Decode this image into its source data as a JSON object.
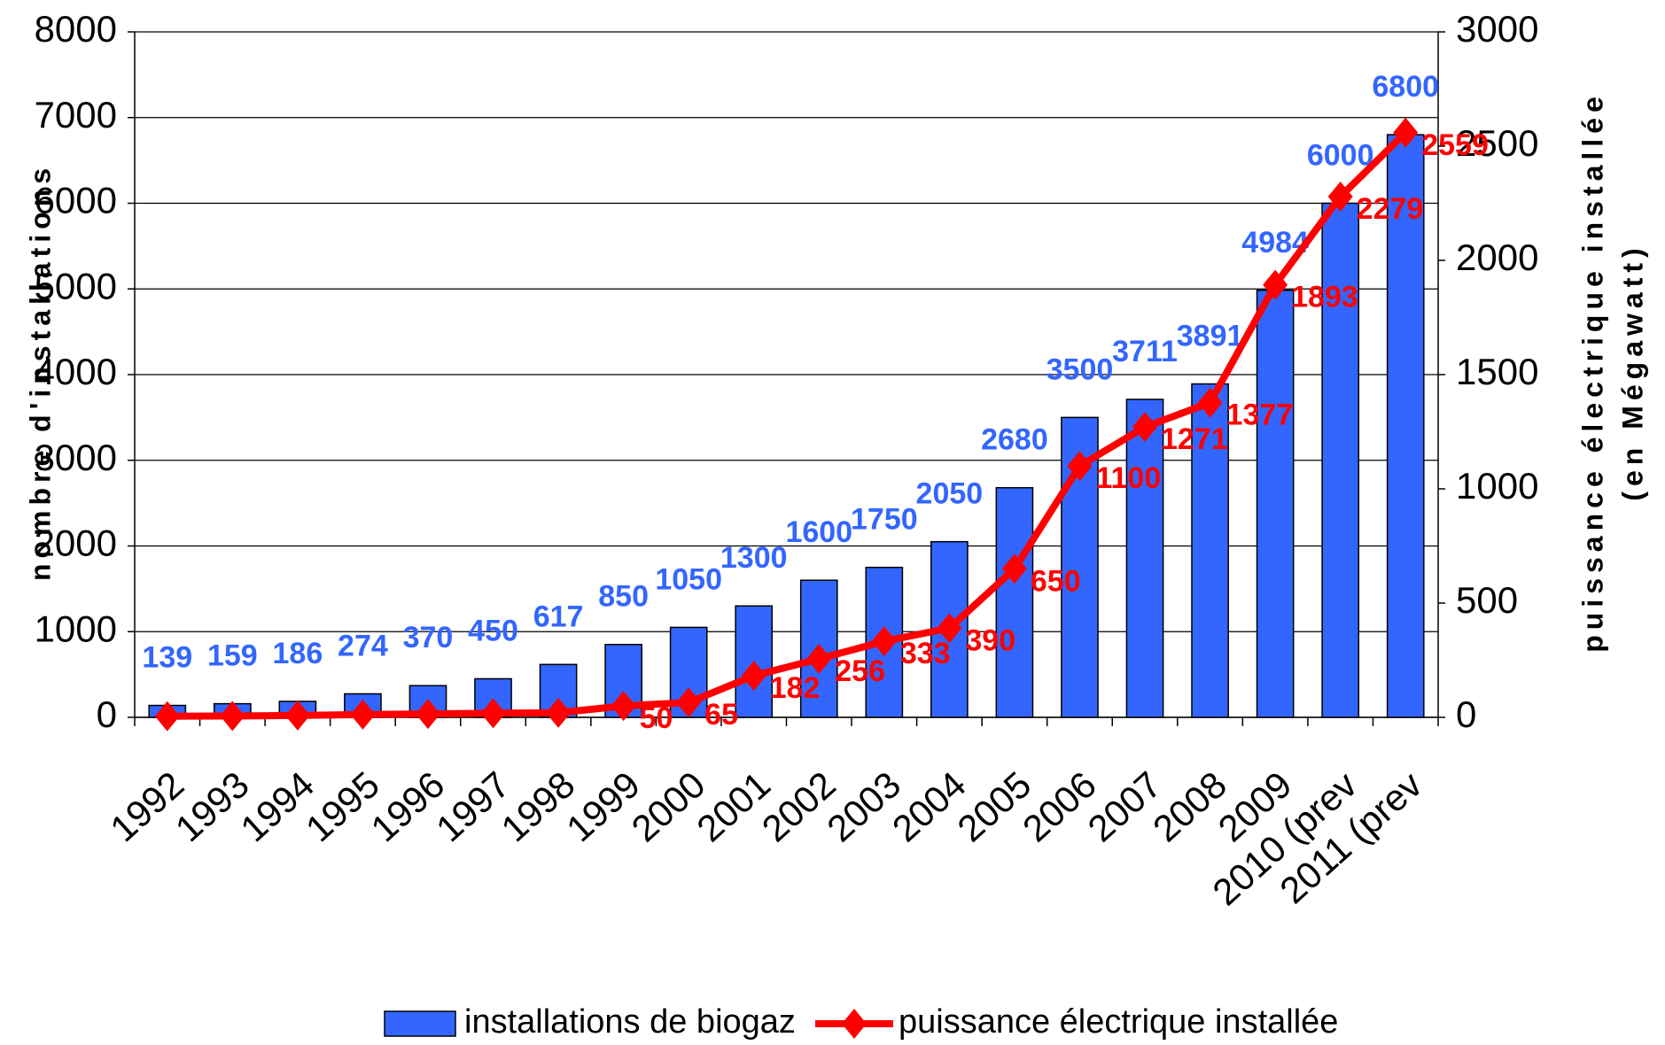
{
  "chart_data": {
    "type": "bar",
    "categories": [
      "1992",
      "1993",
      "1994",
      "1995",
      "1996",
      "1997",
      "1998",
      "1999",
      "2000",
      "2001",
      "2002",
      "2003",
      "2004",
      "2005",
      "2006",
      "2007",
      "2008",
      "2009",
      "2010 (prev",
      "2011 (prev"
    ],
    "series": [
      {
        "name": "installations de biogaz",
        "color": "#3366ff",
        "type": "bar",
        "values": [
          139,
          159,
          186,
          274,
          370,
          450,
          617,
          850,
          1050,
          1300,
          1600,
          1750,
          2050,
          2680,
          3500,
          3711,
          3891,
          4984,
          6000,
          6800
        ]
      },
      {
        "name": "puissance électrique installée",
        "color": "#ff0000",
        "type": "line",
        "axis": "y2",
        "values": [
          5,
          6,
          8,
          12,
          15,
          18,
          20,
          50,
          65,
          182,
          256,
          333,
          390,
          650,
          1100,
          1271,
          1377,
          1893,
          2279,
          2559
        ],
        "value_labels": [
          null,
          null,
          null,
          null,
          null,
          null,
          null,
          50,
          65,
          182,
          256,
          333,
          390,
          650,
          1100,
          1271,
          1377,
          1893,
          2279,
          2559
        ]
      }
    ],
    "y_label": "nombre d'installations",
    "y2_label": [
      "puissance électrique installée",
      "(en Mégawatt)"
    ],
    "ylim": [
      0,
      8000
    ],
    "yticks": [
      0,
      1000,
      2000,
      3000,
      4000,
      5000,
      6000,
      7000,
      8000
    ],
    "y2lim": [
      0,
      3000
    ],
    "y2ticks": [
      0,
      500,
      1000,
      1500,
      2000,
      2500,
      3000
    ],
    "grid": true,
    "legend": "bottom"
  }
}
